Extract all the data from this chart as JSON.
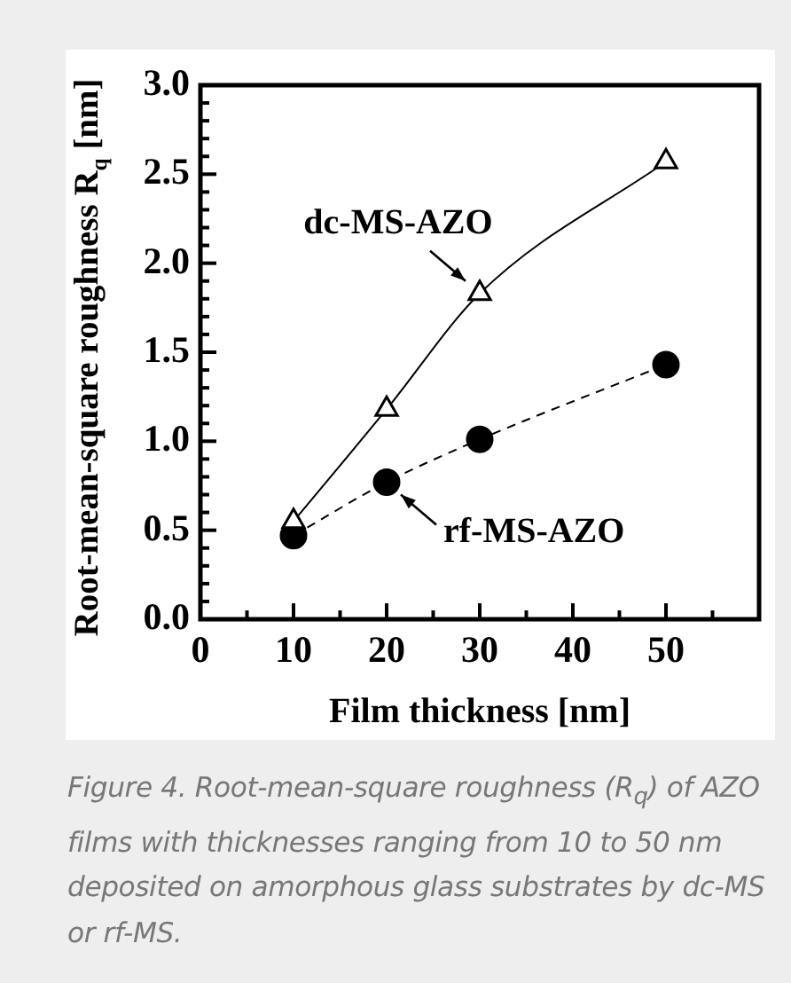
{
  "chart_data": {
    "type": "line",
    "xlabel": "Film thickness [nm]",
    "ylabel": "Root-mean-square roughness R$_{q}$ [nm]",
    "x": [
      10,
      20,
      30,
      50
    ],
    "series": [
      {
        "color": "#000000",
        "values": [
          0.55,
          1.18,
          1.83,
          2.57
        ],
        "marker": "triangle",
        "line_style": "solid"
      },
      {
        "color": "#000000",
        "values": [
          0.47,
          0.77,
          1.01,
          1.43
        ],
        "marker": "circle",
        "line_style": "dashed"
      }
    ],
    "xlim": [
      0,
      60
    ],
    "xticks": [
      0,
      {
        "value": 5,
        "label": null
      },
      10,
      {
        "value": 15,
        "label": null
      },
      20,
      {
        "value": 25,
        "label": null
      },
      30,
      {
        "value": 35,
        "label": null
      },
      40,
      {
        "value": 45,
        "label": null
      },
      50,
      {
        "value": 55,
        "label": null
      },
      {
        "value": 60,
        "label": null
      }
    ],
    "ylim": [
      0,
      3
    ],
    "yticks": [
      "0.0",
      {
        "value": 0.1,
        "label": null
      },
      {
        "value": 0.2,
        "label": null
      },
      {
        "value": 0.3,
        "label": null
      },
      {
        "value": 0.4,
        "label": null
      },
      {
        "value": 0.5,
        "label": "0.5"
      },
      {
        "value": 0.6,
        "label": null
      },
      {
        "value": 0.7,
        "label": null
      },
      {
        "value": 0.8,
        "label": null
      },
      {
        "value": 0.9,
        "label": null
      },
      {
        "value": 1,
        "label": "1.0"
      },
      {
        "value": 1.1,
        "label": null
      },
      {
        "value": 1.2,
        "label": null
      },
      {
        "value": 1.3,
        "label": null
      },
      {
        "value": 1.4,
        "label": null
      },
      {
        "value": 1.5,
        "label": "1.5"
      },
      {
        "value": 1.6,
        "label": null
      },
      {
        "value": 1.7,
        "label": null
      },
      {
        "value": 1.8,
        "label": null
      },
      {
        "value": 1.9,
        "label": null
      },
      {
        "value": 2,
        "label": "2.0"
      },
      {
        "value": 2.1,
        "label": null
      },
      {
        "value": 2.2,
        "label": null
      },
      {
        "value": 2.3,
        "label": null
      },
      {
        "value": 2.4,
        "label": null
      },
      {
        "value": 2.5,
        "label": "2.5"
      },
      {
        "value": 2.6,
        "label": null
      },
      {
        "value": 2.7,
        "label": null
      },
      {
        "value": 2.8,
        "label": null
      },
      {
        "value": 2.9,
        "label": null
      },
      {
        "value": 3,
        "label": "3.0"
      }
    ],
    "grid": false,
    "legend": false,
    "annotations": [
      {
        "text": "dc-MS-AZO",
        "x": 30,
        "y": 1.83
      },
      {
        "text": "rf-MS-AZO",
        "x": 20,
        "y": 0.77
      },
      "Figure 4. Root-mean-square roughness (R$_{q}$) of AZO films with thicknesses ranging from 10 to 50 nm deposited on amorphous glass substrates by dc-MS or rf-MS."
    ]
  }
}
